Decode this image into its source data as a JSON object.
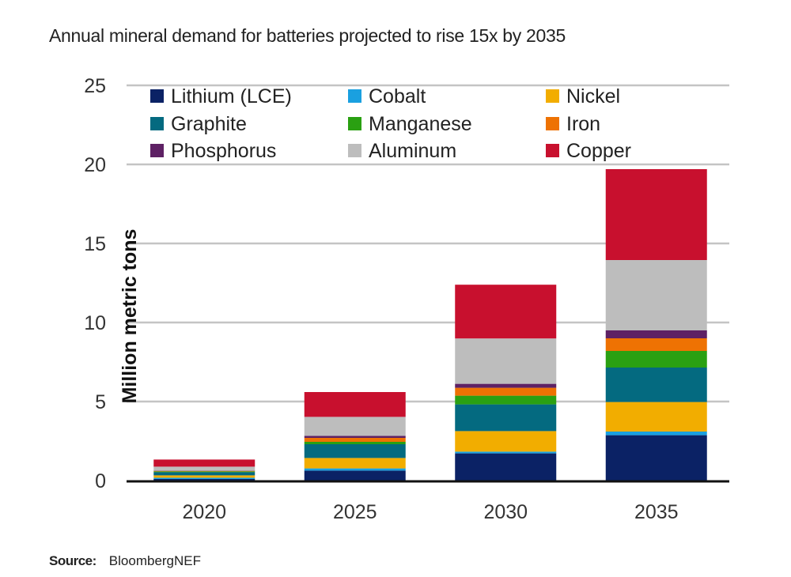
{
  "chart_data": {
    "type": "bar",
    "stacked": true,
    "title": "Annual mineral demand for batteries projected to rise 15x by 2035",
    "xlabel": "",
    "ylabel": "Million metric tons",
    "ylim": [
      0,
      25
    ],
    "yticks": [
      0,
      5,
      10,
      15,
      20,
      25
    ],
    "grid": true,
    "legend_position": "top",
    "categories": [
      "2020",
      "2025",
      "2030",
      "2035"
    ],
    "series": [
      {
        "name": "Lithium (LCE)",
        "color": "#0b2265",
        "values": [
          0.1,
          0.63,
          1.72,
          2.87
        ]
      },
      {
        "name": "Cobalt",
        "color": "#1aa0e0",
        "values": [
          0.08,
          0.14,
          0.11,
          0.23
        ]
      },
      {
        "name": "Nickel",
        "color": "#f2ad00",
        "values": [
          0.15,
          0.66,
          1.3,
          1.87
        ]
      },
      {
        "name": "Graphite",
        "color": "#046a80",
        "values": [
          0.2,
          0.87,
          1.69,
          2.18
        ]
      },
      {
        "name": "Manganese",
        "color": "#2aa012",
        "values": [
          0.05,
          0.15,
          0.55,
          1.05
        ]
      },
      {
        "name": "Iron",
        "color": "#ee7203",
        "values": [
          0.03,
          0.25,
          0.5,
          0.8
        ]
      },
      {
        "name": "Phosphorus",
        "color": "#5e2164",
        "values": [
          0.02,
          0.13,
          0.25,
          0.5
        ]
      },
      {
        "name": "Aluminum",
        "color": "#bdbdbd",
        "values": [
          0.25,
          1.2,
          2.87,
          4.45
        ]
      },
      {
        "name": "Copper",
        "color": "#c8102e",
        "values": [
          0.45,
          1.57,
          3.4,
          5.75
        ]
      }
    ]
  },
  "source": {
    "label": "Source:",
    "value": "BloombergNEF"
  }
}
